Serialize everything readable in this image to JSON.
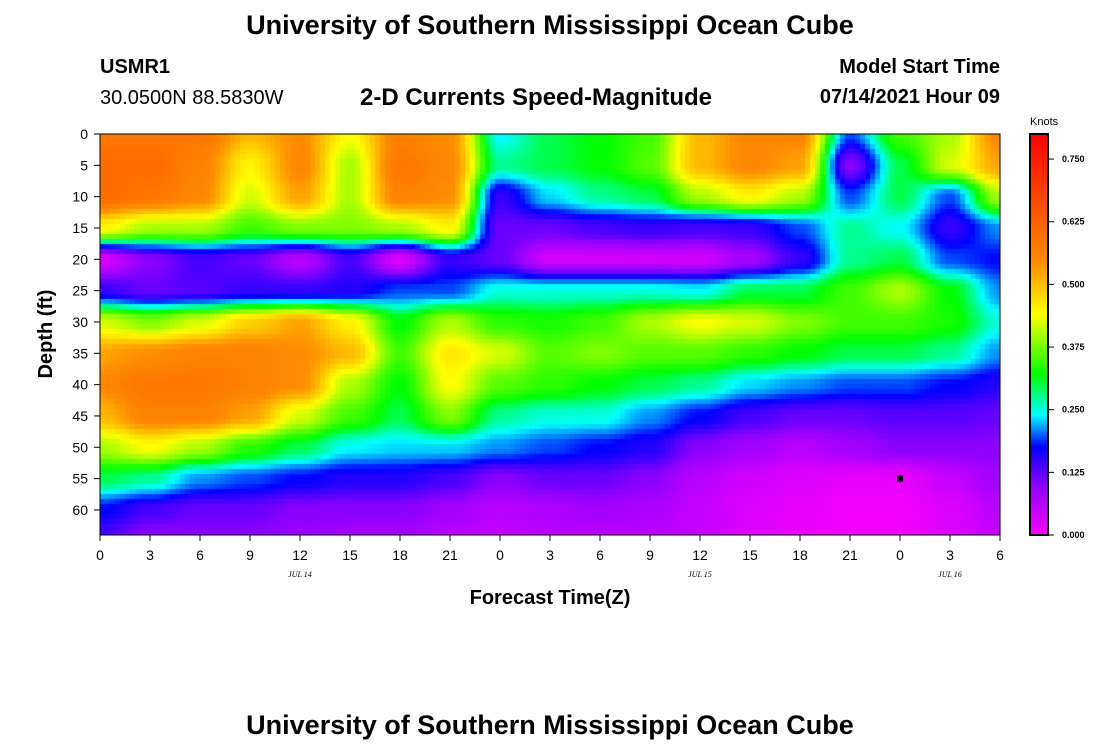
{
  "page": {
    "title_top": "University of Southern Mississippi Ocean Cube",
    "title_bottom": "University of Southern Mississippi Ocean Cube",
    "station": "USMR1",
    "coordinates": "30.0500N  88.5830W",
    "chart_title": "2-D Currents Speed-Magnitude",
    "model_start_label": "Model Start Time",
    "model_start_value": "07/14/2021 Hour 09"
  },
  "chart_data": {
    "type": "heatmap",
    "title": "2-D Currents Speed-Magnitude",
    "xlabel": "Forecast Time(Z)",
    "ylabel": "Depth (ft)",
    "xlim": [
      0,
      54
    ],
    "ylim": [
      0,
      64
    ],
    "x_ticks": [
      {
        "v": 0,
        "label": "0"
      },
      {
        "v": 3,
        "label": "3"
      },
      {
        "v": 6,
        "label": "6"
      },
      {
        "v": 9,
        "label": "9"
      },
      {
        "v": 12,
        "label": "12"
      },
      {
        "v": 15,
        "label": "15"
      },
      {
        "v": 18,
        "label": "18"
      },
      {
        "v": 21,
        "label": "21"
      },
      {
        "v": 24,
        "label": "0"
      },
      {
        "v": 27,
        "label": "3"
      },
      {
        "v": 30,
        "label": "6"
      },
      {
        "v": 33,
        "label": "9"
      },
      {
        "v": 36,
        "label": "12"
      },
      {
        "v": 39,
        "label": "15"
      },
      {
        "v": 42,
        "label": "18"
      },
      {
        "v": 45,
        "label": "21"
      },
      {
        "v": 48,
        "label": "0"
      },
      {
        "v": 51,
        "label": "3"
      },
      {
        "v": 54,
        "label": "6"
      }
    ],
    "day_labels": [
      {
        "v": 12,
        "label": "JUL 14"
      },
      {
        "v": 36,
        "label": "JUL 15"
      },
      {
        "v": 51,
        "label": "JUL 16"
      }
    ],
    "y_ticks": [
      0,
      5,
      10,
      15,
      20,
      25,
      30,
      35,
      40,
      45,
      50,
      55,
      60
    ],
    "colorbar": {
      "label": "Knots",
      "min": 0,
      "max": 0.8,
      "ticks": [
        "0.000",
        "0.125",
        "0.250",
        "0.375",
        "0.500",
        "0.625",
        "0.750"
      ]
    },
    "grid_hours": [
      0,
      3,
      6,
      9,
      12,
      15,
      18,
      21,
      24,
      27,
      30,
      33,
      36,
      39,
      42,
      45,
      48,
      51,
      54
    ],
    "grid_depths": [
      0,
      5,
      10,
      15,
      20,
      25,
      30,
      35,
      40,
      45,
      50,
      55,
      60,
      64
    ],
    "speed_knots": [
      [
        0.58,
        0.58,
        0.58,
        0.5,
        0.54,
        0.44,
        0.56,
        0.54,
        0.25,
        0.3,
        0.32,
        0.35,
        0.5,
        0.55,
        0.55,
        0.2,
        0.35,
        0.4,
        0.55
      ],
      [
        0.6,
        0.6,
        0.56,
        0.45,
        0.55,
        0.4,
        0.58,
        0.55,
        0.28,
        0.3,
        0.32,
        0.36,
        0.5,
        0.55,
        0.52,
        0.1,
        0.3,
        0.42,
        0.52
      ],
      [
        0.6,
        0.58,
        0.55,
        0.42,
        0.52,
        0.4,
        0.56,
        0.54,
        0.15,
        0.24,
        0.28,
        0.3,
        0.4,
        0.45,
        0.4,
        0.2,
        0.3,
        0.2,
        0.4
      ],
      [
        0.45,
        0.4,
        0.4,
        0.35,
        0.38,
        0.38,
        0.4,
        0.45,
        0.12,
        0.12,
        0.14,
        0.15,
        0.14,
        0.15,
        0.2,
        0.28,
        0.25,
        0.15,
        0.22
      ],
      [
        0.03,
        0.1,
        0.14,
        0.12,
        0.06,
        0.14,
        0.03,
        0.15,
        0.12,
        0.04,
        0.04,
        0.04,
        0.04,
        0.08,
        0.15,
        0.28,
        0.3,
        0.2,
        0.18
      ],
      [
        0.15,
        0.12,
        0.13,
        0.15,
        0.15,
        0.16,
        0.2,
        0.2,
        0.26,
        0.26,
        0.26,
        0.26,
        0.25,
        0.3,
        0.3,
        0.35,
        0.4,
        0.32,
        0.22
      ],
      [
        0.42,
        0.38,
        0.42,
        0.48,
        0.52,
        0.45,
        0.32,
        0.4,
        0.34,
        0.33,
        0.35,
        0.4,
        0.44,
        0.42,
        0.38,
        0.35,
        0.35,
        0.33,
        0.26
      ],
      [
        0.52,
        0.54,
        0.56,
        0.56,
        0.54,
        0.5,
        0.35,
        0.46,
        0.42,
        0.36,
        0.38,
        0.36,
        0.36,
        0.34,
        0.32,
        0.3,
        0.3,
        0.28,
        0.22
      ],
      [
        0.55,
        0.58,
        0.58,
        0.56,
        0.54,
        0.4,
        0.32,
        0.44,
        0.36,
        0.34,
        0.32,
        0.3,
        0.28,
        0.24,
        0.22,
        0.2,
        0.2,
        0.18,
        0.16
      ],
      [
        0.5,
        0.56,
        0.56,
        0.52,
        0.42,
        0.35,
        0.3,
        0.38,
        0.28,
        0.26,
        0.26,
        0.22,
        0.18,
        0.14,
        0.12,
        0.12,
        0.13,
        0.13,
        0.12
      ],
      [
        0.4,
        0.44,
        0.4,
        0.34,
        0.3,
        0.25,
        0.24,
        0.24,
        0.22,
        0.2,
        0.18,
        0.16,
        0.1,
        0.08,
        0.06,
        0.08,
        0.1,
        0.1,
        0.1
      ],
      [
        0.3,
        0.28,
        0.22,
        0.2,
        0.18,
        0.16,
        0.16,
        0.14,
        0.1,
        0.12,
        0.12,
        0.1,
        0.06,
        0.04,
        0.03,
        0.02,
        0.02,
        0.05,
        0.08
      ],
      [
        0.18,
        0.14,
        0.12,
        0.12,
        0.1,
        0.1,
        0.1,
        0.08,
        0.06,
        0.07,
        0.08,
        0.07,
        0.05,
        0.03,
        0.02,
        0.01,
        0.01,
        0.03,
        0.06
      ],
      [
        0.14,
        0.1,
        0.1,
        0.1,
        0.09,
        0.08,
        0.08,
        0.06,
        0.05,
        0.06,
        0.06,
        0.06,
        0.05,
        0.03,
        0.02,
        0.01,
        0.01,
        0.03,
        0.05
      ]
    ],
    "markers": [
      {
        "hour": 48,
        "depth": 55
      }
    ]
  }
}
